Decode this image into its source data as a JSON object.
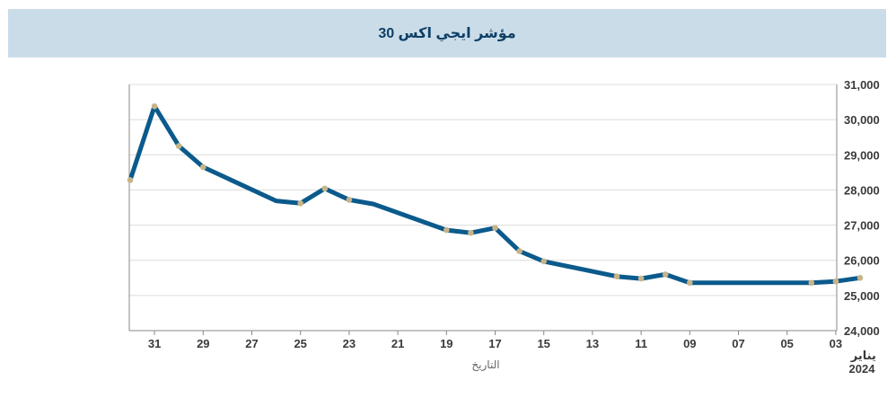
{
  "header": {
    "title": "مؤشر ايجي اكس 30"
  },
  "chart_data": {
    "type": "line",
    "title": "مؤشر ايجي اكس 30",
    "xlabel": "التاريخ",
    "period_label": [
      "يناير",
      "2024"
    ],
    "ylim": [
      24000,
      31000
    ],
    "yticks": [
      24000,
      25000,
      26000,
      27000,
      28000,
      29000,
      30000,
      31000
    ],
    "ytick_labels": [
      "24,000",
      "25,000",
      "26,000",
      "27,000",
      "28,000",
      "29,000",
      "30,000",
      "31,000"
    ],
    "x_order": "descending-left-to-right",
    "xlim": [
      31,
      2
    ],
    "xtick_labels": [
      "31",
      "29",
      "27",
      "25",
      "23",
      "21",
      "19",
      "17",
      "15",
      "13",
      "11",
      "09",
      "07",
      "05",
      "03"
    ],
    "line_color": "#0b5a8c",
    "marker_color": "#c8b48a",
    "series": [
      {
        "x": [
          32,
          31,
          30,
          29,
          26,
          25,
          24,
          23,
          22,
          19,
          18,
          17,
          16,
          15,
          12,
          11,
          10,
          9,
          5,
          4,
          3,
          2
        ],
        "y": [
          28280,
          30380,
          29250,
          28650,
          27690,
          27620,
          28040,
          27720,
          27600,
          26860,
          26780,
          26920,
          26260,
          25970,
          25540,
          25480,
          25600,
          25360,
          25360,
          25360,
          25400,
          25500
        ],
        "markers": [
          true,
          true,
          true,
          true,
          false,
          true,
          true,
          true,
          false,
          true,
          true,
          true,
          true,
          true,
          true,
          true,
          true,
          true,
          false,
          true,
          true,
          true
        ]
      }
    ]
  }
}
